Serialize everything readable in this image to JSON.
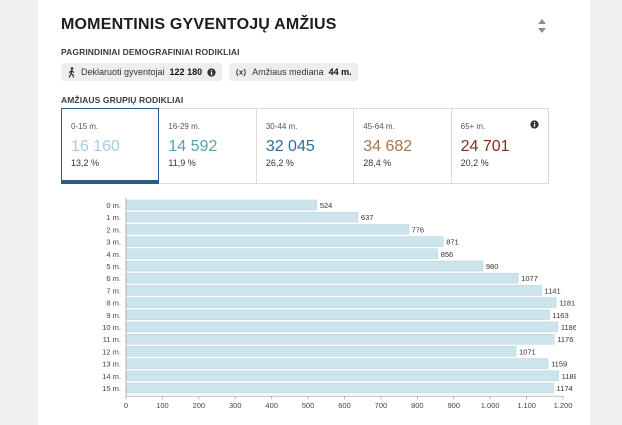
{
  "title": "MOMENTINIS GYVENTOJŲ AMŽIUS",
  "main_section": {
    "label": "PAGRINDINIAI DEMOGRAFINIAI RODIKLIAI",
    "chips": [
      {
        "icon": "walking-person-icon",
        "label": "Deklaruoti gyventojai",
        "value": "122 180"
      },
      {
        "icon": "median-icon",
        "label": "Amžiaus mediana",
        "value": "44 m."
      }
    ]
  },
  "groups_section": {
    "label": "AMŽIAUS GRUPIŲ RODIKLIAI",
    "groups": [
      {
        "label": "0-15 m.",
        "value": "16 160",
        "pct": "13,2 %",
        "color": "#a9cde0"
      },
      {
        "label": "16-29 m.",
        "value": "14 592",
        "pct": "11,9 %",
        "color": "#5aa0b4"
      },
      {
        "label": "30-44 m.",
        "value": "32 045",
        "pct": "26,2 %",
        "color": "#2a6f99"
      },
      {
        "label": "45-64 m.",
        "value": "34 682",
        "pct": "28,4 %",
        "color": "#a8744c"
      },
      {
        "label": "65+ m.",
        "value": "24 701",
        "pct": "20,2 %",
        "color": "#8b2a24"
      }
    ]
  },
  "colors": {
    "active_border": "#2c5a8c",
    "bar": "#cce4ec",
    "bar_stroke": "#b4d0db"
  },
  "chart_data": {
    "type": "bar",
    "orientation": "horizontal",
    "categories": [
      "0 m.",
      "1 m.",
      "2 m.",
      "3 m.",
      "4 m.",
      "5 m.",
      "6 m.",
      "7 m.",
      "8 m.",
      "9 m.",
      "10 m.",
      "11 m.",
      "12 m.",
      "13 m.",
      "14 m.",
      "15 m."
    ],
    "values": [
      524,
      637,
      776,
      871,
      856,
      980,
      1077,
      1141,
      1181,
      1163,
      1186,
      1176,
      1071,
      1159,
      1188,
      1174
    ],
    "xlim": [
      0,
      1200
    ],
    "xticks": [
      0,
      100,
      200,
      300,
      400,
      500,
      600,
      700,
      800,
      900,
      1000,
      1100,
      1200
    ],
    "xtick_labels": [
      "0",
      "100",
      "200",
      "300",
      "400",
      "500",
      "600",
      "700",
      "800",
      "900",
      "1.000",
      "1.100",
      "1.200"
    ],
    "grid": false,
    "title": "",
    "xlabel": "",
    "ylabel": ""
  }
}
